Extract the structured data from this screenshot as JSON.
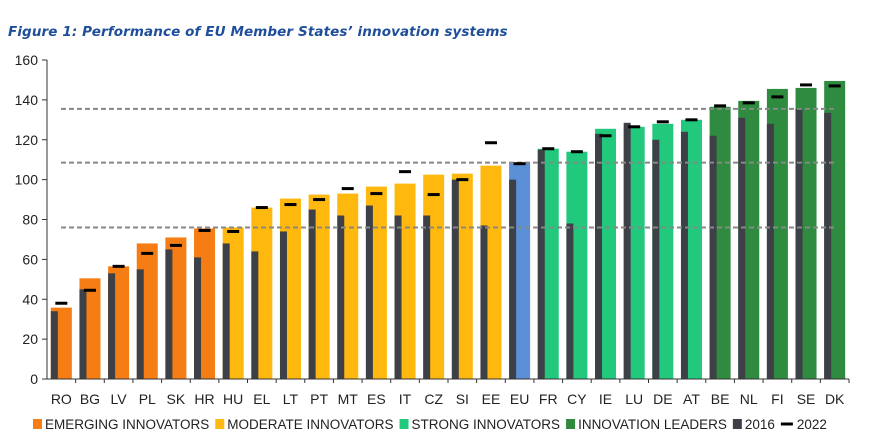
{
  "title": "Figure 1: Performance of EU Member States’ innovation systems",
  "colors": {
    "emerging": "#f57d14",
    "moderate": "#ffb80d",
    "strong": "#22c97d",
    "leader": "#2e8b3f",
    "eu": "#5b8fd6",
    "bar2016": "#3d4046",
    "marker2022": "#000000",
    "reference_line": "#888888"
  },
  "chart_data": {
    "type": "bar",
    "title": "Figure 1: Performance of EU Member States’ innovation systems",
    "xlabel": "",
    "ylabel": "",
    "ylim": [
      0,
      160
    ],
    "yticks": [
      0,
      20,
      40,
      60,
      80,
      100,
      120,
      140,
      160
    ],
    "grid": false,
    "legend_position": "bottom",
    "categories": [
      "RO",
      "BG",
      "LV",
      "PL",
      "SK",
      "HR",
      "HU",
      "EL",
      "LT",
      "PT",
      "MT",
      "ES",
      "IT",
      "CZ",
      "SI",
      "EE",
      "EU",
      "FR",
      "CY",
      "IE",
      "LU",
      "DE",
      "AT",
      "BE",
      "NL",
      "FI",
      "SE",
      "DK"
    ],
    "groups": [
      "emerging",
      "emerging",
      "emerging",
      "emerging",
      "emerging",
      "emerging",
      "moderate",
      "moderate",
      "moderate",
      "moderate",
      "moderate",
      "moderate",
      "moderate",
      "moderate",
      "moderate",
      "moderate",
      "eu",
      "strong",
      "strong",
      "strong",
      "strong",
      "strong",
      "strong",
      "leader",
      "leader",
      "leader",
      "leader",
      "leader"
    ],
    "series": [
      {
        "values": [
          35.8,
          50.5,
          56.5,
          68,
          71,
          75.5,
          76,
          86,
          90.5,
          92.5,
          93,
          96.5,
          98,
          102.5,
          103,
          107,
          108.5,
          115.5,
          114,
          125.5,
          126.5,
          128,
          130,
          136.5,
          139.5,
          145.5,
          146,
          149.5
        ]
      },
      {
        "name": "2016",
        "values": [
          34,
          45,
          53,
          55,
          65,
          61,
          68,
          64,
          74,
          85,
          82,
          87,
          82,
          82,
          100,
          77,
          100,
          115,
          78,
          123,
          128.5,
          120,
          124,
          122,
          131,
          128,
          135.5,
          133.5
        ]
      },
      {
        "name": "2022",
        "values": [
          38,
          44.5,
          56.5,
          63,
          67,
          74.5,
          74,
          86,
          87.5,
          90,
          95.5,
          93,
          104,
          92.5,
          100,
          118.5,
          108,
          115.5,
          114,
          122,
          126.5,
          129,
          130,
          137,
          138.5,
          141.5,
          147.5,
          147
        ]
      }
    ],
    "reference_lines": [
      76,
      108.5,
      135.5
    ],
    "legend": [
      {
        "label": "EMERGING INNOVATORS",
        "key": "emerging"
      },
      {
        "label": "MODERATE INNOVATORS",
        "key": "moderate"
      },
      {
        "label": "STRONG INNOVATORS",
        "key": "strong"
      },
      {
        "label": "INNOVATION LEADERS",
        "key": "leader"
      },
      {
        "label": "2016",
        "key": "bar2016"
      },
      {
        "label": "2022",
        "key": "marker2022"
      }
    ]
  }
}
